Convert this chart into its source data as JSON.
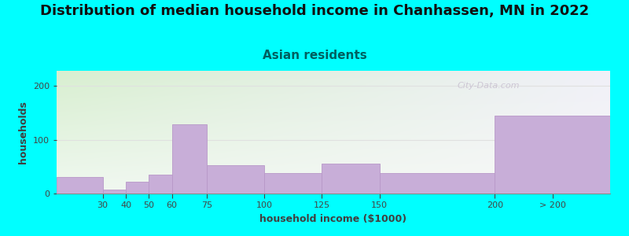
{
  "title": "Distribution of median household income in Chanhassen, MN in 2022",
  "subtitle": "Asian residents",
  "xlabel": "household income ($1000)",
  "ylabel": "households",
  "background_color": "#00FFFF",
  "plot_bg_color_topleft": "#d8efd0",
  "plot_bg_color_topright": "#f0f0f8",
  "plot_bg_color_bottom": "#f8f8f8",
  "bar_color": "#c8aed8",
  "bar_edge_color": "#b898c8",
  "categories": [
    "30",
    "40",
    "50",
    "60",
    "75",
    "100",
    "125",
    "150",
    "200",
    "> 200"
  ],
  "tick_positions": [
    30,
    40,
    50,
    60,
    75,
    100,
    125,
    150,
    200
  ],
  "bar_lefts": [
    10,
    30,
    40,
    50,
    60,
    75,
    100,
    125,
    150,
    200
  ],
  "bar_rights": [
    30,
    40,
    50,
    60,
    75,
    100,
    125,
    150,
    200,
    250
  ],
  "values": [
    30,
    8,
    22,
    35,
    128,
    52,
    38,
    55,
    38,
    145
  ],
  "yticks": [
    0,
    100,
    200
  ],
  "ylim": [
    0,
    228
  ],
  "xlim": [
    10,
    250
  ],
  "title_fontsize": 13,
  "subtitle_fontsize": 11,
  "axis_label_fontsize": 9,
  "tick_fontsize": 8,
  "watermark_text": "City-Data.com",
  "watermark_color": "#c8c0d0",
  "title_color": "#111111",
  "subtitle_color": "#006060",
  "axis_label_color": "#404040",
  "tick_color": "#444444",
  "grid_color": "#e0e0e0"
}
